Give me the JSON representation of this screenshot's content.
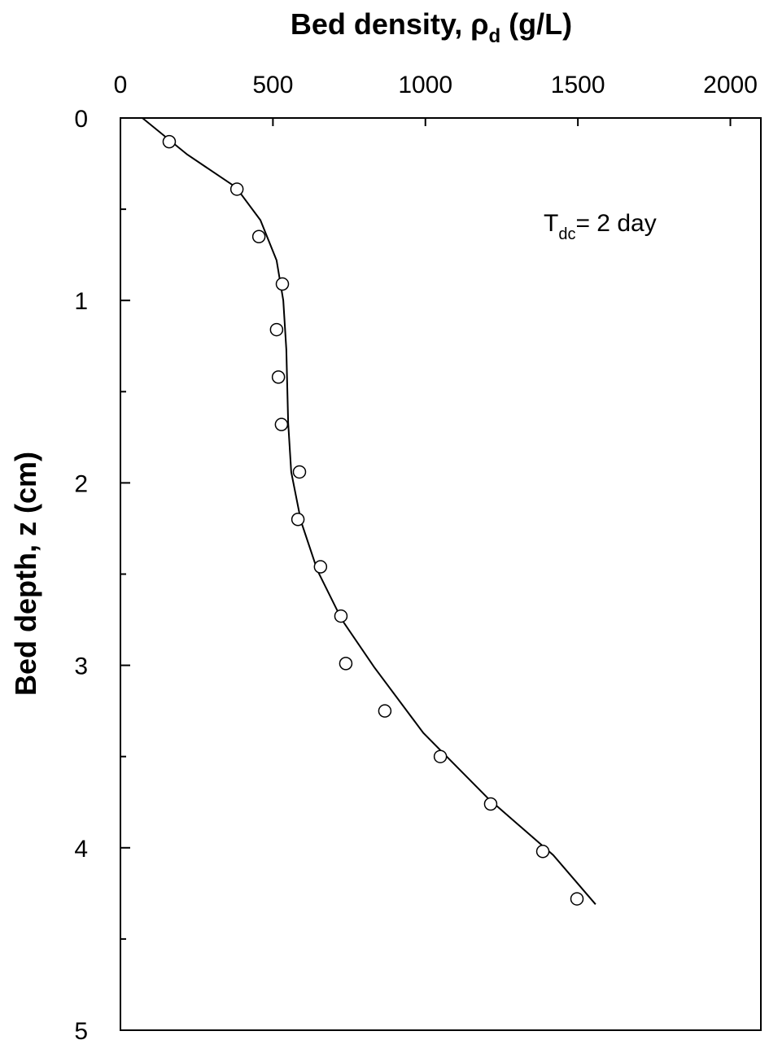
{
  "chart_data": {
    "type": "scatter",
    "title": [
      "Bed density, ρ",
      "d",
      " (g/L)"
    ],
    "y_label": "Bed depth, z (cm)",
    "annotation": [
      "T",
      "dc",
      "= 2 day"
    ],
    "xlim": [
      0,
      2100
    ],
    "xticks": [
      0,
      500,
      1000,
      1500,
      2000
    ],
    "ylim": [
      0,
      5
    ],
    "yticks": [
      0,
      1,
      2,
      3,
      4,
      5
    ],
    "yticks_minor": [
      0.5,
      1.5,
      2.5,
      3.5,
      4.5
    ],
    "y_inverted": true,
    "x_axis_position": "top",
    "series": [
      {
        "type": "scatter",
        "color": "#000000",
        "x": [
          160,
          382,
          454,
          531,
          512,
          518,
          528,
          587,
          582,
          656,
          723,
          739,
          867,
          1049,
          1214,
          1385,
          1497
        ],
        "y": [
          0.13,
          0.39,
          0.65,
          0.91,
          1.16,
          1.42,
          1.68,
          1.94,
          2.2,
          2.46,
          2.73,
          2.99,
          3.25,
          3.5,
          3.76,
          4.02,
          4.28
        ]
      },
      {
        "type": "line",
        "color": "#000000",
        "x": [
          72,
          219,
          379,
          459,
          512,
          534,
          544,
          550,
          560,
          592,
          646,
          726,
          832,
          993,
          1206,
          1419,
          1558
        ],
        "y": [
          0,
          0.2,
          0.38,
          0.56,
          0.78,
          1.0,
          1.27,
          1.67,
          1.94,
          2.21,
          2.48,
          2.75,
          3.01,
          3.37,
          3.73,
          4.04,
          4.31
        ]
      }
    ]
  }
}
